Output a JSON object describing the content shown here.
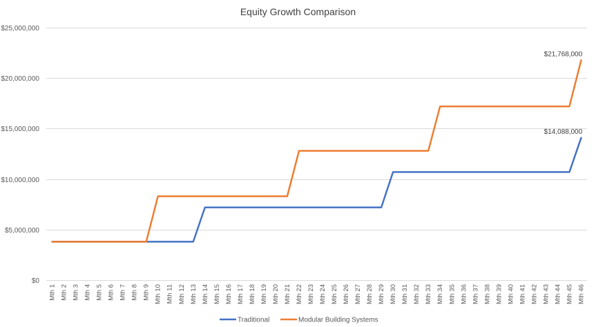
{
  "chart_data": {
    "type": "line",
    "title": "Equity Growth Comparison",
    "xlabel": "",
    "ylabel": "",
    "ylim": [
      0,
      25000000
    ],
    "ytick_values": [
      0,
      5000000,
      10000000,
      15000000,
      20000000,
      25000000
    ],
    "ytick_labels": [
      "$0",
      "$5,000,000",
      "$10,000,000",
      "$15,000,000",
      "$20,000,000",
      "$25,000,000"
    ],
    "grid": "horizontal",
    "legend_position": "bottom",
    "categories": [
      "Mth 1",
      "Mth 2",
      "Mth 3",
      "Mth 4",
      "Mth 5",
      "Mth 6",
      "Mth 7",
      "Mth 8",
      "Mth 9",
      "Mth 10",
      "Mth 11",
      "Mth 12",
      "Mth 13",
      "Mth 14",
      "Mth 15",
      "Mth 16",
      "Mth 17",
      "Mth 18",
      "Mth 19",
      "Mth 20",
      "Mth 21",
      "Mth 22",
      "Mth 23",
      "Mth 24",
      "Mth 25",
      "Mth 26",
      "Mth 27",
      "Mth 28",
      "Mth 29",
      "Mth 30",
      "Mth 31",
      "Mth 32",
      "Mth 33",
      "Mth 34",
      "Mth 35",
      "Mth 36",
      "Mth 37",
      "Mth 38",
      "Mth 39",
      "Mth 40",
      "Mth 41",
      "Mth 42",
      "Mth 43",
      "Mth 44",
      "Mth 45",
      "Mth 46"
    ],
    "series": [
      {
        "name": "Traditional",
        "color": "#4472c4",
        "values": [
          3800000,
          3800000,
          3800000,
          3800000,
          3800000,
          3800000,
          3800000,
          3800000,
          3800000,
          3800000,
          3800000,
          3800000,
          3800000,
          7200000,
          7200000,
          7200000,
          7200000,
          7200000,
          7200000,
          7200000,
          7200000,
          7200000,
          7200000,
          7200000,
          7200000,
          7200000,
          7200000,
          7200000,
          7200000,
          10700000,
          10700000,
          10700000,
          10700000,
          10700000,
          10700000,
          10700000,
          10700000,
          10700000,
          10700000,
          10700000,
          10700000,
          10700000,
          10700000,
          10700000,
          10700000,
          14088000
        ],
        "end_label": "$14,088,000"
      },
      {
        "name": "Modular Building Systems",
        "color": "#ed7d31",
        "values": [
          3800000,
          3800000,
          3800000,
          3800000,
          3800000,
          3800000,
          3800000,
          3800000,
          3800000,
          8300000,
          8300000,
          8300000,
          8300000,
          8300000,
          8300000,
          8300000,
          8300000,
          8300000,
          8300000,
          8300000,
          8300000,
          12800000,
          12800000,
          12800000,
          12800000,
          12800000,
          12800000,
          12800000,
          12800000,
          12800000,
          12800000,
          12800000,
          12800000,
          17200000,
          17200000,
          17200000,
          17200000,
          17200000,
          17200000,
          17200000,
          17200000,
          17200000,
          17200000,
          17200000,
          17200000,
          21768000
        ],
        "end_label": "$21,768,000"
      }
    ]
  }
}
